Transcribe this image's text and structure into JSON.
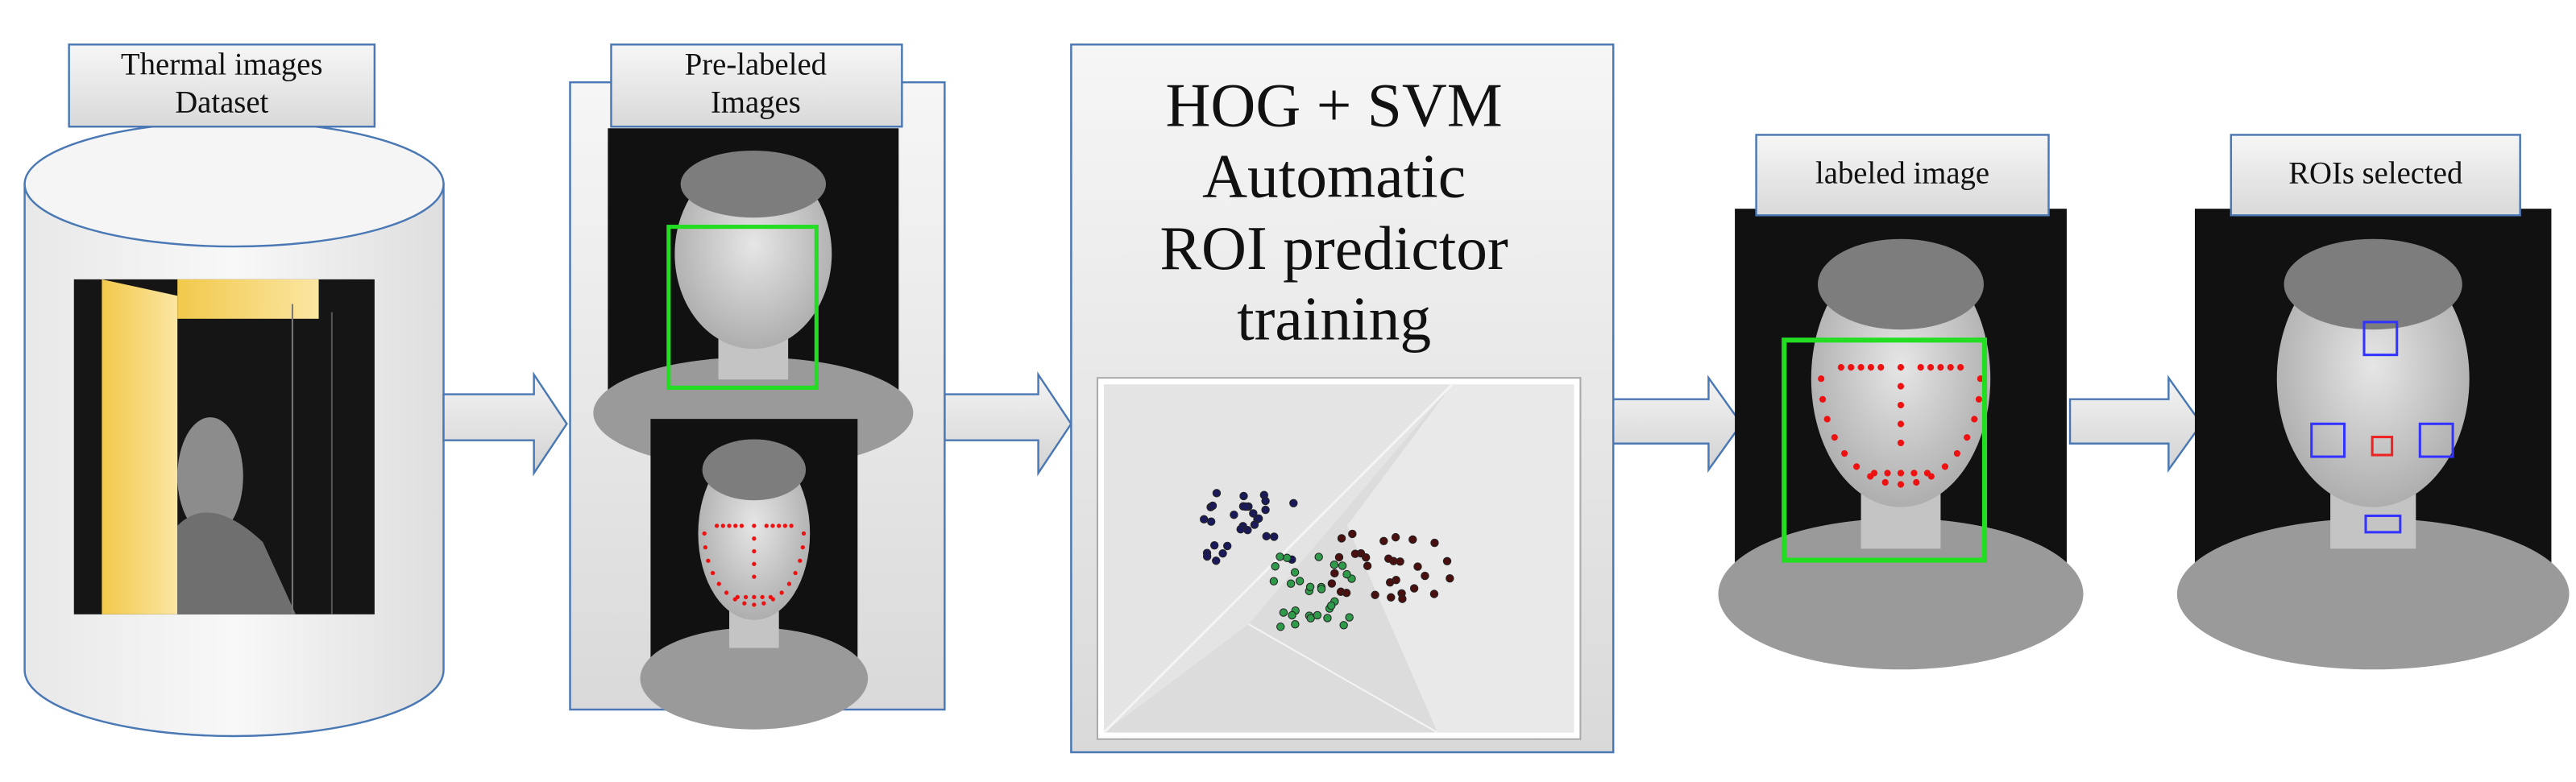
{
  "nodes": [
    {
      "label_lines": [
        "Thermal images",
        "Dataset"
      ]
    },
    {
      "label_lines": [
        "Pre-labeled",
        "Images"
      ]
    },
    {
      "label_lines": [
        "HOG + SVM",
        "Automatic",
        "ROI predictor",
        "training"
      ]
    },
    {
      "label_lines": [
        "labeled image"
      ]
    },
    {
      "label_lines": [
        "ROIs selected"
      ]
    }
  ]
}
